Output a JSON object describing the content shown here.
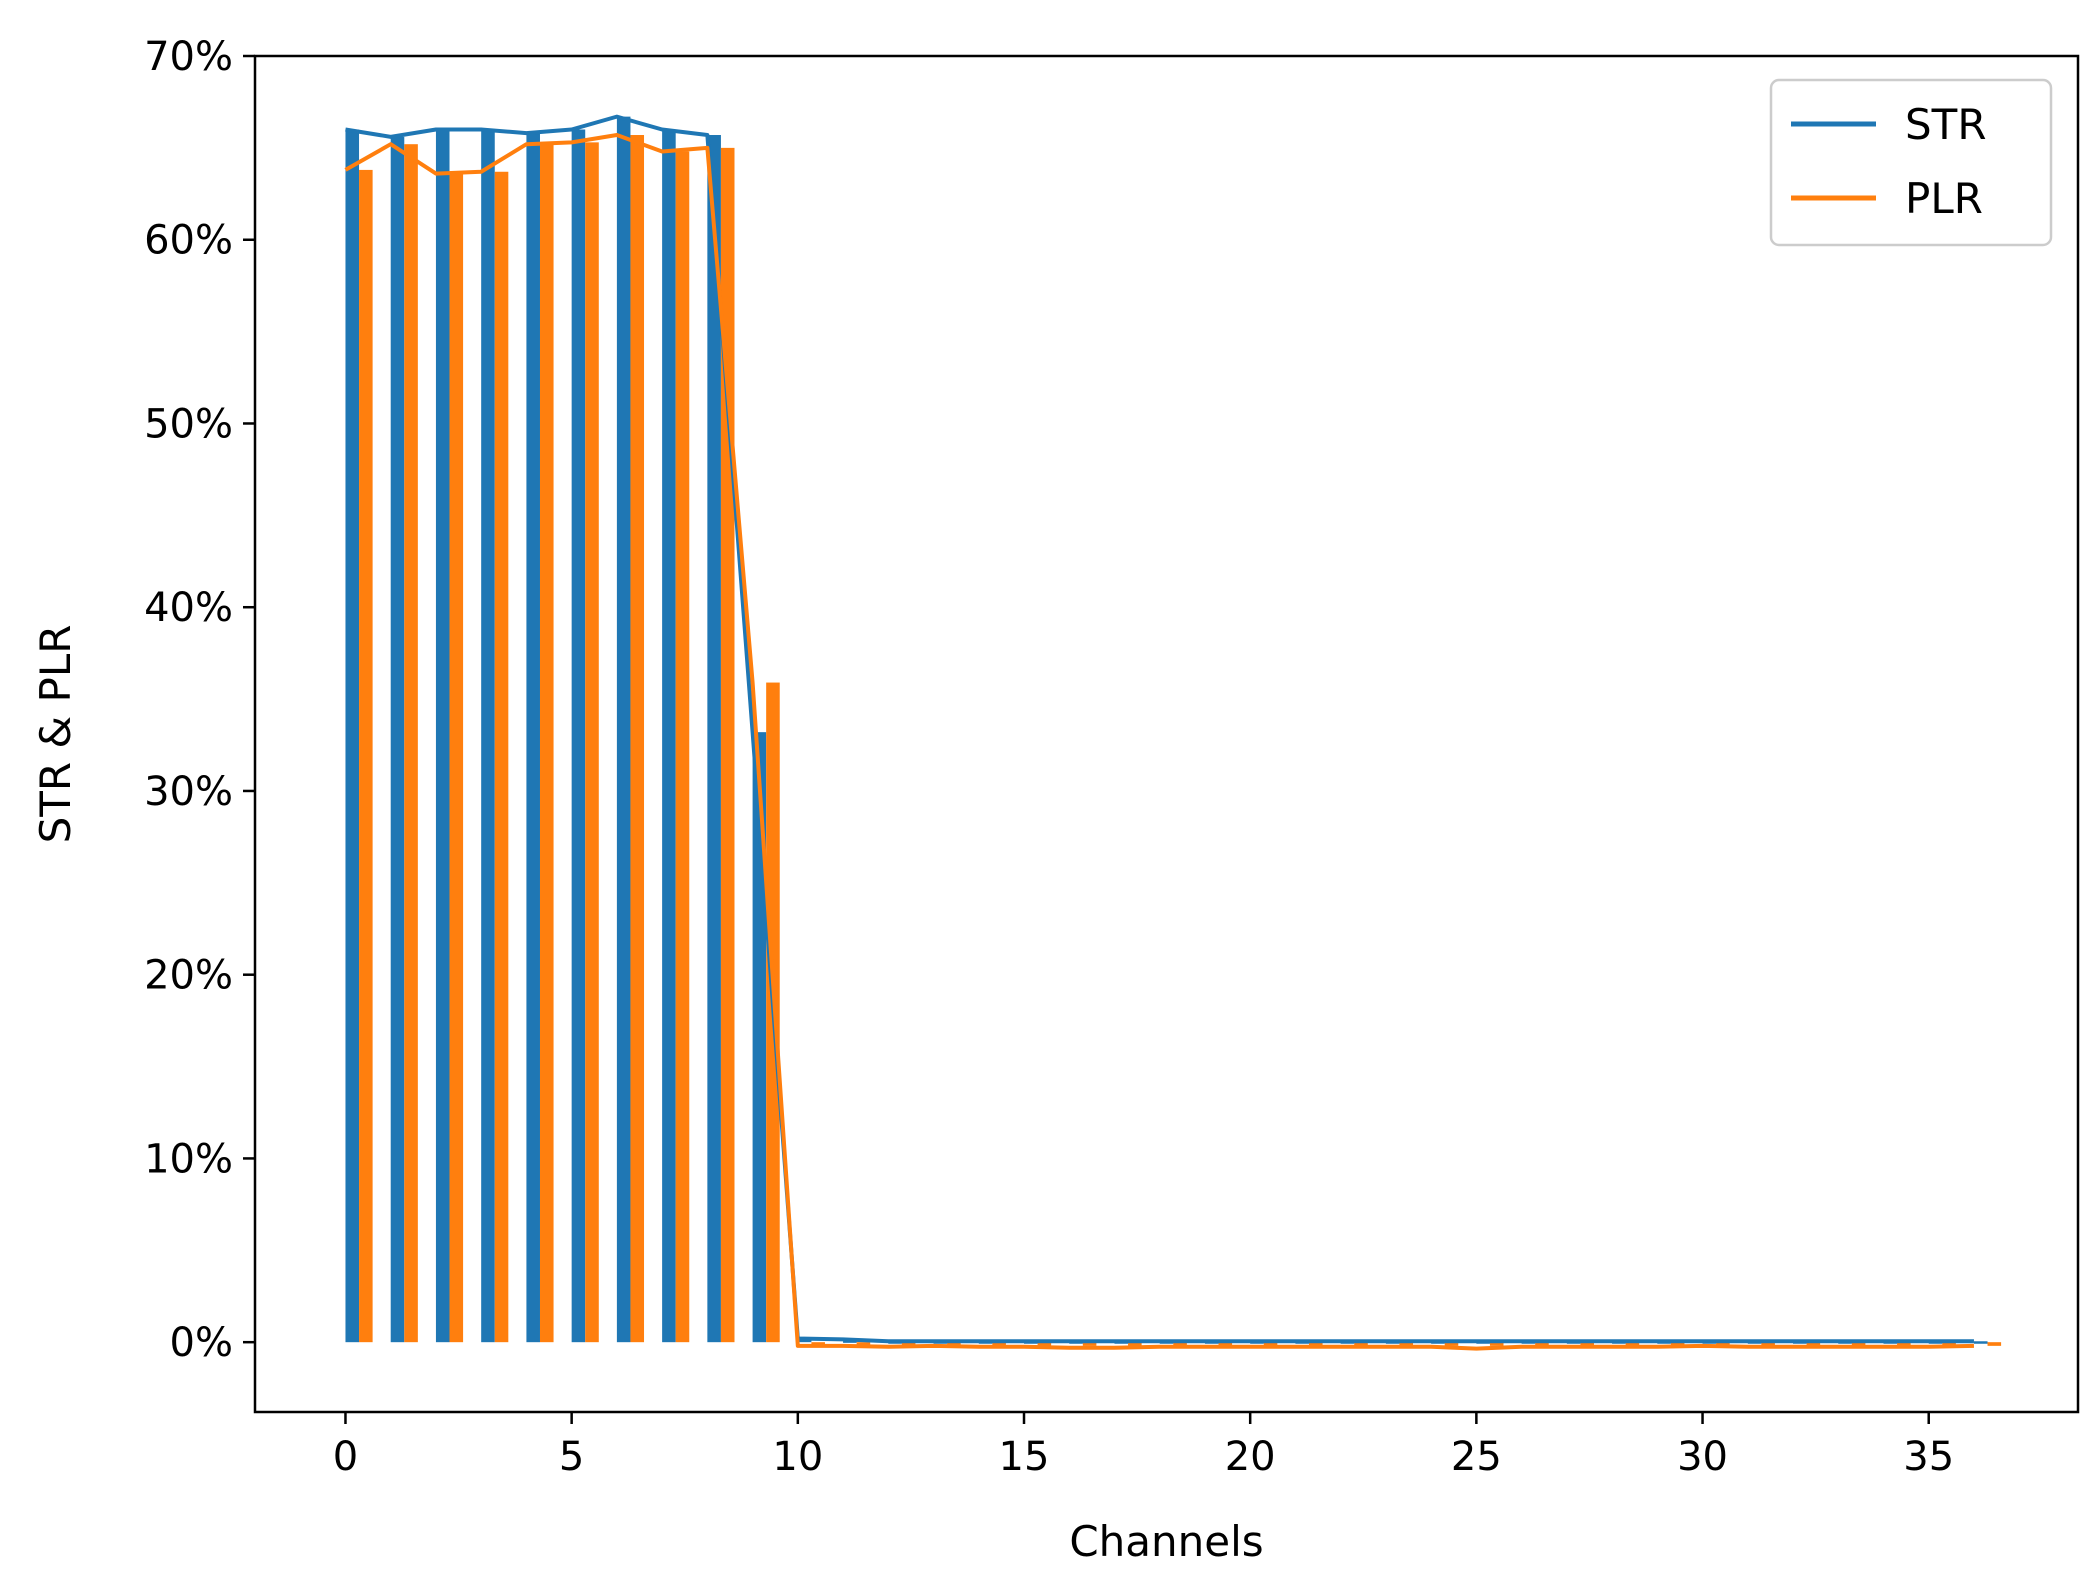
{
  "chart_data": {
    "type": "bar",
    "xlabel": "Channels",
    "ylabel": "STR & PLR",
    "xlim": [
      -2,
      38.3
    ],
    "ylim": [
      -3.8,
      70
    ],
    "xticks": [
      0,
      5,
      10,
      15,
      20,
      25,
      30,
      35
    ],
    "xtick_labels": [
      "0",
      "5",
      "10",
      "15",
      "20",
      "25",
      "30",
      "35"
    ],
    "yticks": [
      0,
      10,
      20,
      30,
      40,
      50,
      60,
      70
    ],
    "ytick_labels": [
      "0%",
      "10%",
      "20%",
      "30%",
      "40%",
      "50%",
      "60%",
      "70%"
    ],
    "grid": false,
    "legend_position": "top-right",
    "bar_width": 0.3,
    "series": [
      {
        "name": "STR",
        "color": "#1f77b4",
        "bar_offset": 0,
        "bars": [
          66.0,
          65.6,
          66.0,
          66.0,
          65.8,
          66.0,
          66.7,
          66.0,
          65.7,
          33.2,
          0.15,
          0.1,
          0.05,
          0.05,
          0.05,
          0.05,
          0.05,
          0.05,
          0.05,
          0.05,
          0.05,
          0.05,
          0.05,
          0.05,
          0.05,
          0.05,
          0.05,
          0.05,
          0.05,
          0.05,
          0.05,
          0.05,
          0.05,
          0.05,
          0.05,
          0.05,
          0.05
        ],
        "line": [
          66.0,
          65.6,
          66.0,
          66.0,
          65.8,
          66.0,
          66.7,
          66.0,
          65.7,
          33.2,
          0.2,
          0.15,
          0.05,
          0.05,
          0.05,
          0.05,
          0.05,
          0.05,
          0.05,
          0.05,
          0.05,
          0.05,
          0.05,
          0.05,
          0.05,
          0.05,
          0.05,
          0.05,
          0.05,
          0.05,
          0.05,
          0.05,
          0.05,
          0.05,
          0.05,
          0.05,
          0.05
        ]
      },
      {
        "name": "PLR",
        "color": "#ff7f0e",
        "bar_offset": 0.3,
        "bars": [
          63.8,
          65.2,
          63.6,
          63.7,
          65.2,
          65.3,
          65.7,
          64.8,
          65.0,
          35.9,
          -0.2,
          -0.2,
          -0.2,
          -0.2,
          -0.2,
          -0.2,
          -0.2,
          -0.2,
          -0.2,
          -0.2,
          -0.2,
          -0.2,
          -0.2,
          -0.2,
          -0.2,
          -0.2,
          -0.2,
          -0.2,
          -0.2,
          -0.2,
          -0.2,
          -0.2,
          -0.2,
          -0.2,
          -0.2,
          -0.2,
          -0.2
        ],
        "line": [
          63.8,
          65.2,
          63.6,
          63.7,
          65.2,
          65.3,
          65.7,
          64.8,
          65.0,
          35.9,
          -0.2,
          -0.2,
          -0.25,
          -0.2,
          -0.25,
          -0.25,
          -0.3,
          -0.3,
          -0.25,
          -0.25,
          -0.25,
          -0.25,
          -0.25,
          -0.25,
          -0.25,
          -0.35,
          -0.25,
          -0.25,
          -0.25,
          -0.25,
          -0.2,
          -0.25,
          -0.25,
          -0.25,
          -0.25,
          -0.25,
          -0.2
        ]
      }
    ]
  }
}
